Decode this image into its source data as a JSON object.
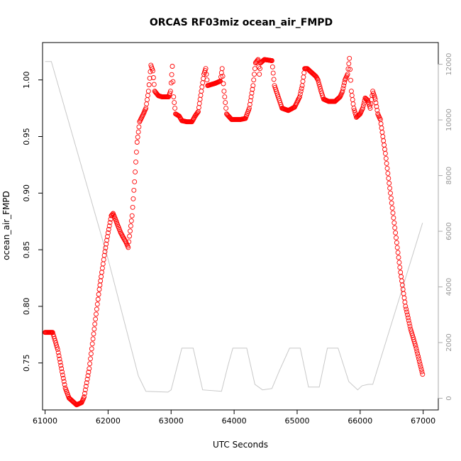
{
  "chart_data": {
    "type": "scatter",
    "title": "ORCAS RF03miz ocean_air_FMPD",
    "xlabel": "UTC Seconds",
    "ylabel": "ocean_air_FMPD",
    "xlim": [
      60960,
      67240
    ],
    "ylim": [
      0.7085,
      1.033
    ],
    "x_ticks": [
      61000,
      62000,
      63000,
      64000,
      65000,
      66000,
      67000
    ],
    "y_ticks": [
      0.75,
      0.8,
      0.85,
      0.9,
      0.95,
      1.0
    ],
    "y_tick_labels": [
      "0.75",
      "0.80",
      "0.85",
      "0.90",
      "0.95",
      "1.00"
    ],
    "y2_lim": [
      -420,
      12780
    ],
    "y2_ticks": [
      0,
      2000,
      4000,
      6000,
      8000,
      10000,
      12000
    ],
    "y2_tick_labels": [
      "0",
      "2000",
      "4000",
      "6000",
      "8000",
      "10000",
      "12000"
    ],
    "colors": {
      "points": "#ff0000",
      "altitude_line": "#c8c8c8",
      "axis": "#000000",
      "right_axis": "#aaaaaa"
    },
    "series": [
      {
        "role": "primary",
        "marker": "open-circle",
        "color": "#ff0000",
        "x_start": 61000,
        "x_end": 66990,
        "x_step": 10,
        "keypoints": [
          [
            61000,
            0.777
          ],
          [
            61120,
            0.777
          ],
          [
            61200,
            0.762
          ],
          [
            61260,
            0.745
          ],
          [
            61320,
            0.728
          ],
          [
            61380,
            0.719
          ],
          [
            61460,
            0.715
          ],
          [
            61500,
            0.713
          ],
          [
            61580,
            0.715
          ],
          [
            61620,
            0.72
          ],
          [
            61700,
            0.745
          ],
          [
            61780,
            0.78
          ],
          [
            61860,
            0.815
          ],
          [
            61940,
            0.845
          ],
          [
            62000,
            0.865
          ],
          [
            62050,
            0.88
          ],
          [
            62080,
            0.882
          ],
          [
            62130,
            0.875
          ],
          [
            62200,
            0.865
          ],
          [
            62280,
            0.857
          ],
          [
            62320,
            0.852
          ],
          [
            62340,
            0.862
          ],
          [
            62380,
            0.88
          ],
          [
            62420,
            0.91
          ],
          [
            62460,
            0.945
          ],
          [
            62500,
            0.963
          ],
          [
            62560,
            0.97
          ],
          [
            62600,
            0.975
          ],
          [
            62640,
            0.99
          ],
          [
            62680,
            1.013
          ],
          [
            62710,
            1.008
          ],
          [
            62740,
            0.99
          ],
          [
            62800,
            0.986
          ],
          [
            62860,
            0.985
          ],
          [
            62960,
            0.985
          ],
          [
            62990,
            0.99
          ],
          [
            63020,
            1.012
          ],
          [
            63040,
            0.985
          ],
          [
            63070,
            0.97
          ],
          [
            63130,
            0.968
          ],
          [
            63170,
            0.964
          ],
          [
            63250,
            0.963
          ],
          [
            63330,
            0.963
          ],
          [
            63380,
            0.968
          ],
          [
            63430,
            0.972
          ],
          [
            63480,
            0.99
          ],
          [
            63520,
            1.005
          ],
          [
            63550,
            1.01
          ],
          [
            63580,
            0.995
          ],
          [
            63700,
            0.997
          ],
          [
            63780,
            0.999
          ],
          [
            63810,
            1.01
          ],
          [
            63840,
            0.99
          ],
          [
            63880,
            0.97
          ],
          [
            63960,
            0.965
          ],
          [
            64100,
            0.965
          ],
          [
            64180,
            0.966
          ],
          [
            64240,
            0.975
          ],
          [
            64300,
            0.995
          ],
          [
            64340,
            1.015
          ],
          [
            64380,
            1.018
          ],
          [
            64400,
            1.005
          ],
          [
            64420,
            1.015
          ],
          [
            64480,
            1.018
          ],
          [
            64600,
            1.017
          ],
          [
            64640,
            0.995
          ],
          [
            64700,
            0.985
          ],
          [
            64760,
            0.975
          ],
          [
            64860,
            0.973
          ],
          [
            64960,
            0.976
          ],
          [
            65040,
            0.985
          ],
          [
            65080,
            0.995
          ],
          [
            65120,
            1.01
          ],
          [
            65160,
            1.01
          ],
          [
            65220,
            1.007
          ],
          [
            65300,
            1.003
          ],
          [
            65330,
            1.0
          ],
          [
            65380,
            0.99
          ],
          [
            65420,
            0.983
          ],
          [
            65500,
            0.981
          ],
          [
            65600,
            0.981
          ],
          [
            65680,
            0.985
          ],
          [
            65720,
            0.99
          ],
          [
            65760,
            1.0
          ],
          [
            65800,
            1.005
          ],
          [
            65830,
            1.019
          ],
          [
            65860,
            0.99
          ],
          [
            65900,
            0.975
          ],
          [
            65940,
            0.967
          ],
          [
            66000,
            0.97
          ],
          [
            66040,
            0.975
          ],
          [
            66080,
            0.984
          ],
          [
            66120,
            0.982
          ],
          [
            66160,
            0.975
          ],
          [
            66200,
            0.99
          ],
          [
            66240,
            0.983
          ],
          [
            66280,
            0.97
          ],
          [
            66320,
            0.965
          ],
          [
            66400,
            0.935
          ],
          [
            66480,
            0.9
          ],
          [
            66560,
            0.865
          ],
          [
            66640,
            0.83
          ],
          [
            66720,
            0.8
          ],
          [
            66800,
            0.78
          ],
          [
            66880,
            0.765
          ],
          [
            66990,
            0.74
          ]
        ]
      },
      {
        "role": "secondary-axis",
        "line": "solid",
        "color": "#c8c8c8",
        "points": [
          [
            61000,
            12100
          ],
          [
            61100,
            12100
          ],
          [
            62000,
            5000
          ],
          [
            62480,
            800
          ],
          [
            62600,
            250
          ],
          [
            62950,
            220
          ],
          [
            63000,
            300
          ],
          [
            63170,
            1800
          ],
          [
            63350,
            1800
          ],
          [
            63500,
            300
          ],
          [
            63800,
            250
          ],
          [
            63900,
            1150
          ],
          [
            63980,
            1800
          ],
          [
            64200,
            1800
          ],
          [
            64330,
            500
          ],
          [
            64450,
            300
          ],
          [
            64600,
            350
          ],
          [
            64720,
            1000
          ],
          [
            64880,
            1800
          ],
          [
            65050,
            1800
          ],
          [
            65180,
            400
          ],
          [
            65350,
            400
          ],
          [
            65480,
            1800
          ],
          [
            65650,
            1800
          ],
          [
            65820,
            600
          ],
          [
            65960,
            300
          ],
          [
            66030,
            450
          ],
          [
            66130,
            500
          ],
          [
            66200,
            500
          ],
          [
            66990,
            6300
          ]
        ]
      }
    ]
  }
}
